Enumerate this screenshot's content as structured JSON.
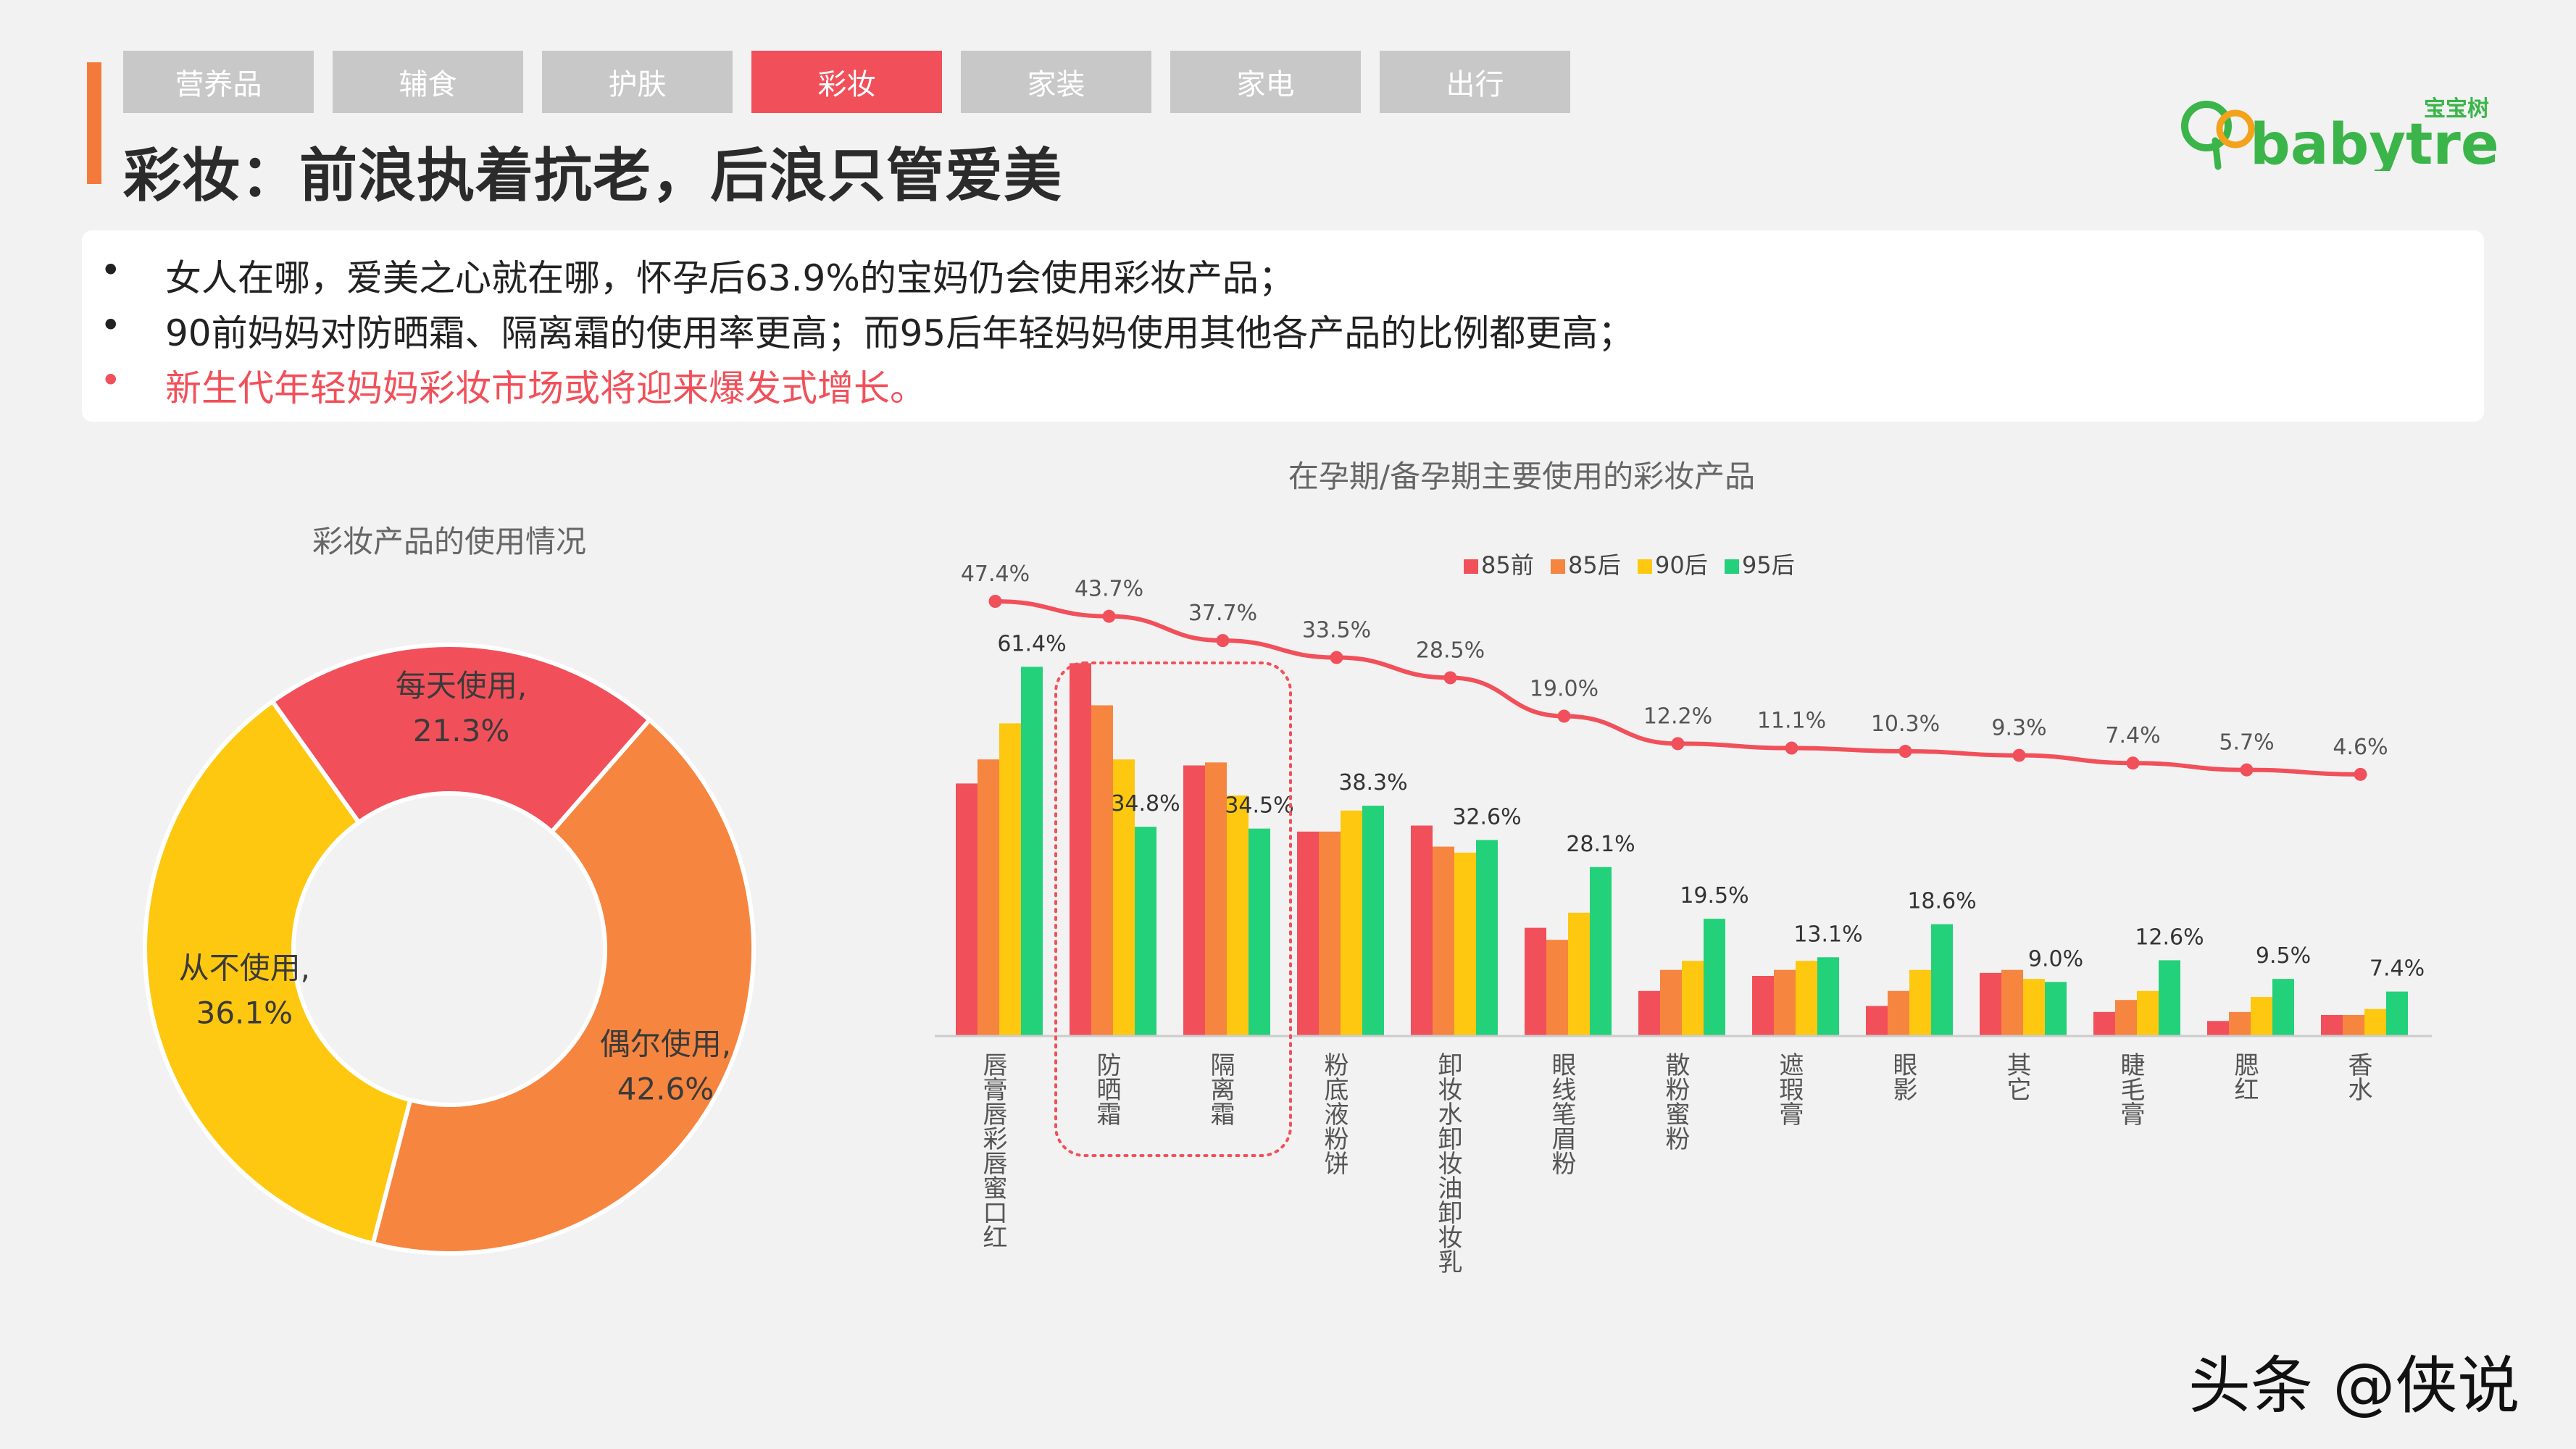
{
  "tabs": [
    {
      "label": "营养品",
      "active": false
    },
    {
      "label": "辅食",
      "active": false
    },
    {
      "label": "护肤",
      "active": false
    },
    {
      "label": "彩妆",
      "active": true
    },
    {
      "label": "家装",
      "active": false
    },
    {
      "label": "家电",
      "active": false
    },
    {
      "label": "出行",
      "active": false
    }
  ],
  "title": "彩妆：前浪执着抗老，后浪只管爱美",
  "logo": {
    "tag": "宝宝树",
    "word": "babytree"
  },
  "bullets": [
    "女人在哪，爱美之心就在哪，怀孕后63.9%的宝妈仍会使用彩妆产品；",
    "90前妈妈对防晒霜、隔离霜的使用率更高；而95后年轻妈妈使用其他各产品的比例都更高；",
    "新生代年轻妈妈彩妆市场或将迎来爆发式增长。"
  ],
  "watermark": "头条 @侠说",
  "colors": {
    "accent": "#f1505a",
    "tab_inactive": "#c8c8c8",
    "s85_before": "#f1505a",
    "s85_after": "#f68540",
    "s90_after": "#fdc80f",
    "s95_after": "#23d17a",
    "highlight_box": "#f1505a"
  },
  "chart_data": [
    {
      "type": "pie",
      "title": "彩妆产品的使用情况",
      "donut": true,
      "slices": [
        {
          "label": "每天使用,",
          "value": 21.3,
          "value_label": "21.3%",
          "color": "#f1505a"
        },
        {
          "label": "偶尔使用,",
          "value": 42.6,
          "value_label": "42.6%",
          "color": "#f68540"
        },
        {
          "label": "从不使用,",
          "value": 36.1,
          "value_label": "36.1%",
          "color": "#fdc80f"
        }
      ]
    },
    {
      "type": "bar",
      "title": "在孕期/备孕期主要使用的彩妆产品",
      "legend_position": "top-right",
      "categories": [
        "唇膏唇彩唇蜜口红",
        "防晒霜",
        "隔离霜",
        "粉底液粉饼",
        "卸妆水卸妆油卸妆乳",
        "眼线笔眉粉",
        "散粉蜜粉",
        "遮瑕膏",
        "眼影",
        "其它",
        "睫毛膏",
        "腮红",
        "香水"
      ],
      "ylim": [
        0,
        70
      ],
      "series": [
        {
          "name": "85前",
          "color": "#f1505a",
          "values": [
            42,
            62,
            45,
            34,
            35,
            18,
            7.5,
            10,
            5,
            10.5,
            4,
            2.5,
            3.5
          ]
        },
        {
          "name": "85后",
          "color": "#f68540",
          "values": [
            46,
            55,
            45.5,
            34,
            31.5,
            16,
            11,
            11,
            7.5,
            11,
            6,
            4,
            3.5
          ]
        },
        {
          "name": "90后",
          "color": "#fdc80f",
          "values": [
            52,
            46,
            40,
            37.5,
            30.5,
            20.5,
            12.5,
            12.5,
            11,
            9.5,
            7.5,
            6.5,
            4.5
          ]
        },
        {
          "name": "95后",
          "color": "#23d17a",
          "values": [
            61.4,
            34.8,
            34.5,
            38.3,
            32.6,
            28.1,
            19.5,
            13.1,
            18.6,
            9.0,
            12.6,
            9.5,
            7.4
          ]
        }
      ],
      "bar_labels": [
        "61.4%",
        "34.8%",
        "34.5%",
        "38.3%",
        "32.6%",
        "28.1%",
        "19.5%",
        "13.1%",
        "18.6%",
        "9.0%",
        "12.6%",
        "9.5%",
        "7.4%"
      ],
      "line_series": {
        "values": [
          47.4,
          43.7,
          37.7,
          33.5,
          28.5,
          19.0,
          12.2,
          11.1,
          10.3,
          9.3,
          7.4,
          5.7,
          4.6
        ],
        "labels": [
          "47.4%",
          "43.7%",
          "37.7%",
          "33.5%",
          "28.5%",
          "19.0%",
          "12.2%",
          "11.1%",
          "10.3%",
          "9.3%",
          "7.4%",
          "5.7%",
          "4.6%"
        ],
        "color": "#f1505a"
      },
      "highlighted_categories": [
        "防晒霜",
        "隔离霜"
      ]
    }
  ]
}
